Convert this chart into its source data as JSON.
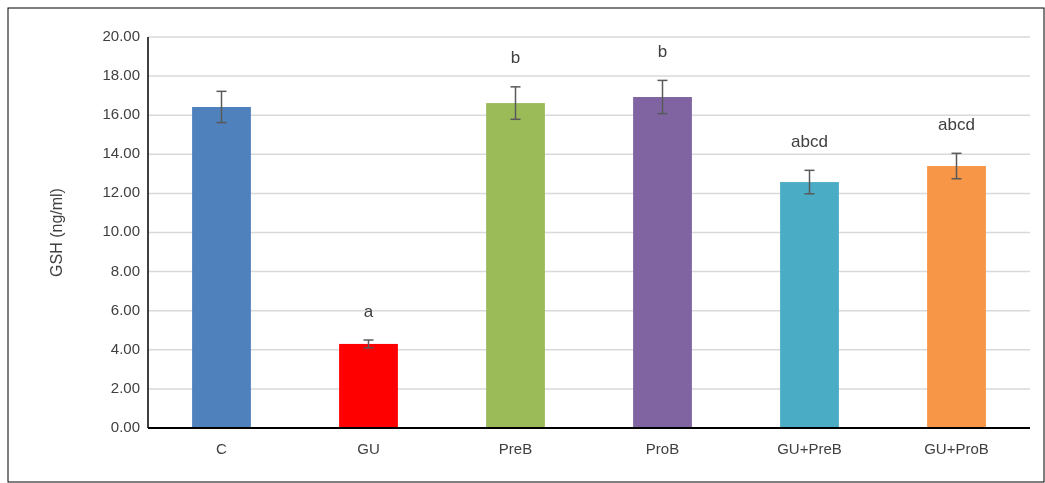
{
  "chart_data": {
    "type": "bar",
    "ylabel": "GSH (ng/ml)",
    "categories": [
      "C",
      "GU",
      "PreB",
      "ProB",
      "GU+PreB",
      "GU+ProB"
    ],
    "values": [
      16.42,
      4.3,
      16.62,
      16.93,
      12.58,
      13.4
    ],
    "colors": [
      "#4f81bd",
      "#ff0000",
      "#9bbb59",
      "#8064a2",
      "#4bacc6",
      "#f79646"
    ],
    "errors": [
      0.8,
      0.2,
      0.83,
      0.85,
      0.6,
      0.65
    ],
    "ylim": [
      0,
      20
    ],
    "yticks": [
      {
        "value": 0,
        "label": "0.00"
      },
      {
        "value": 2,
        "label": "2.00"
      },
      {
        "value": 4,
        "label": "4.00"
      },
      {
        "value": 6,
        "label": "6.00"
      },
      {
        "value": 8,
        "label": "8.00"
      },
      {
        "value": 10,
        "label": "10.00"
      },
      {
        "value": 12,
        "label": "12.00"
      },
      {
        "value": 14,
        "label": "14.00"
      },
      {
        "value": 16,
        "label": "16.00"
      },
      {
        "value": 18,
        "label": "18.00"
      },
      {
        "value": 20,
        "label": "20.00"
      }
    ],
    "grid": "y",
    "value_labels": [
      null,
      "a",
      "b",
      "b",
      "abcd",
      "abcd"
    ]
  }
}
